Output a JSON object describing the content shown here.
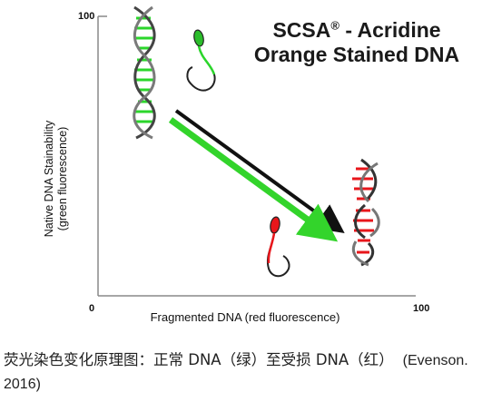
{
  "title": {
    "line1_prefix": "SCSA",
    "registered_mark": "®",
    "line1_suffix": " - Acridine",
    "line2": "Orange Stained DNA"
  },
  "axes": {
    "y_tick_top": "100",
    "origin_tick": "0",
    "x_tick_right": "100",
    "xlabel": "Fragmented DNA (red fluorescence)",
    "ylabel_line1": "Native DNA Stainability",
    "ylabel_line2": "(green fluorescence)"
  },
  "caption": {
    "text": "荧光染色变化原理图：正常 DNA（绿）至受损 DNA（红）",
    "citation": "(Evenson. 2016)"
  },
  "colors": {
    "intact_dna": "#2bd62b",
    "damaged_dna": "#e8161b",
    "arrow_green": "#33d42b",
    "arrow_shadow": "#111111"
  },
  "icons": [
    "dna-helix-intact",
    "sperm-green",
    "sperm-red",
    "dna-helix-fragmented"
  ]
}
